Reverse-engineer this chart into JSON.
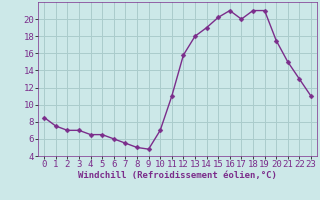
{
  "x": [
    0,
    1,
    2,
    3,
    4,
    5,
    6,
    7,
    8,
    9,
    10,
    11,
    12,
    13,
    14,
    15,
    16,
    17,
    18,
    19,
    20,
    21,
    22,
    23
  ],
  "y": [
    8.5,
    7.5,
    7.0,
    7.0,
    6.5,
    6.5,
    6.0,
    5.5,
    5.0,
    4.8,
    7.0,
    11.0,
    15.8,
    18.0,
    19.0,
    20.2,
    21.0,
    20.0,
    21.0,
    21.0,
    17.5,
    15.0,
    13.0,
    11.0
  ],
  "line_color": "#7b2d8b",
  "marker_color": "#7b2d8b",
  "bg_color": "#cce8e8",
  "grid_color": "#aacccc",
  "xlabel": "Windchill (Refroidissement éolien,°C)",
  "xlim_min": -0.5,
  "xlim_max": 23.5,
  "ylim_min": 4,
  "ylim_max": 22,
  "yticks": [
    4,
    6,
    8,
    10,
    12,
    14,
    16,
    18,
    20
  ],
  "xticks": [
    0,
    1,
    2,
    3,
    4,
    5,
    6,
    7,
    8,
    9,
    10,
    11,
    12,
    13,
    14,
    15,
    16,
    17,
    18,
    19,
    20,
    21,
    22,
    23
  ],
  "xlabel_fontsize": 6.5,
  "tick_fontsize": 6.5,
  "marker_size": 2.5,
  "line_width": 1.0
}
